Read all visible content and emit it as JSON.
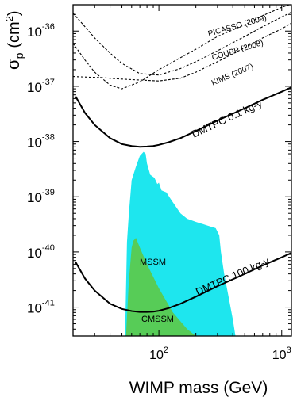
{
  "chart_data": {
    "type": "line",
    "title": "",
    "xlabel": "WIMP mass (GeV)",
    "ylabel_main": "σ",
    "ylabel_sub": "p",
    "ylabel_unit": "(cm",
    "ylabel_unit_sup": "2",
    "ylabel_close": ")",
    "xscale": "log",
    "yscale": "log",
    "xlim": [
      20,
      1200
    ],
    "ylim": [
      3e-42,
      3e-36
    ],
    "grid": false,
    "x_ticks": [
      {
        "value": 100,
        "base": "10",
        "exp": "2"
      },
      {
        "value": 1000,
        "base": "10",
        "exp": "3"
      }
    ],
    "y_ticks": [
      {
        "value": 1e-36,
        "base": "10",
        "exp": "-36"
      },
      {
        "value": 1e-37,
        "base": "10",
        "exp": "-37"
      },
      {
        "value": 1e-38,
        "base": "10",
        "exp": "-38"
      },
      {
        "value": 1e-39,
        "base": "10",
        "exp": "-39"
      },
      {
        "value": 1e-40,
        "base": "10",
        "exp": "-40"
      },
      {
        "value": 1e-41,
        "base": "10",
        "exp": "-41"
      }
    ],
    "regions": [
      {
        "name": "MSSM",
        "color": "#1ee6ee",
        "points": [
          [
            53,
            3e-42
          ],
          [
            55,
            1.5e-40
          ],
          [
            57,
            5e-40
          ],
          [
            60,
            2e-39
          ],
          [
            65,
            3.5e-39
          ],
          [
            70,
            5.5e-39
          ],
          [
            75,
            6.5e-39
          ],
          [
            78,
            6e-39
          ],
          [
            80,
            4e-39
          ],
          [
            85,
            2.5e-39
          ],
          [
            92,
            2.2e-39
          ],
          [
            97,
            1.7e-39
          ],
          [
            100,
            1.8e-39
          ],
          [
            105,
            1.3e-39
          ],
          [
            115,
            1.2e-39
          ],
          [
            125,
            9e-40
          ],
          [
            135,
            7e-40
          ],
          [
            150,
            5e-40
          ],
          [
            170,
            4e-40
          ],
          [
            200,
            3.5e-40
          ],
          [
            250,
            3e-40
          ],
          [
            290,
            2.7e-40
          ],
          [
            310,
            2e-40
          ],
          [
            320,
            1e-40
          ],
          [
            340,
            4e-41
          ],
          [
            370,
            1.5e-41
          ],
          [
            400,
            6e-42
          ],
          [
            420,
            3e-42
          ]
        ]
      },
      {
        "name": "CMSSM",
        "color": "#57cc57",
        "points": [
          [
            54,
            3e-42
          ],
          [
            57,
            3e-41
          ],
          [
            60,
            1.2e-40
          ],
          [
            62,
            1.6e-40
          ],
          [
            65,
            1.8e-40
          ],
          [
            70,
            1.2e-40
          ],
          [
            80,
            6e-41
          ],
          [
            100,
            2.2e-41
          ],
          [
            130,
            8e-42
          ],
          [
            170,
            4e-42
          ],
          [
            200,
            3e-42
          ]
        ]
      }
    ],
    "series": [
      {
        "name": "PICASSO (2009)",
        "style": "dashed",
        "color": "#000000",
        "x": [
          20,
          25,
          30,
          40,
          50,
          70,
          100,
          150,
          200,
          300,
          500,
          700,
          1000,
          1200
        ],
        "y": [
          6e-37,
          3e-37,
          1.8e-37,
          1.05e-37,
          9e-38,
          1.2e-37,
          2e-37,
          3.3e-37,
          4.7e-37,
          8e-37,
          1.3e-36,
          1.9e-36,
          2.7e-36,
          3.1e-36
        ]
      },
      {
        "name": "COUPP (2008)",
        "style": "dashed",
        "color": "#000000",
        "x": [
          20,
          25,
          30,
          40,
          50,
          70,
          100,
          150,
          200,
          300,
          500,
          700,
          1000,
          1200
        ],
        "y": [
          2.1e-36,
          1.2e-36,
          7.5e-37,
          4e-37,
          2.6e-37,
          1.7e-37,
          1.6e-37,
          2.1e-37,
          2.8e-37,
          4.4e-37,
          8e-37,
          1.2e-36,
          1.8e-36,
          2.2e-36
        ]
      },
      {
        "name": "KIMS (2007)",
        "style": "dashed",
        "color": "#000000",
        "x": [
          20,
          30,
          40,
          50,
          70,
          100,
          150,
          200,
          300,
          500,
          700,
          1000,
          1200
        ],
        "y": [
          1.5e-37,
          1.45e-37,
          1.4e-37,
          1.35e-37,
          1.3e-37,
          1.25e-37,
          1.4e-37,
          1.8e-37,
          2.8e-37,
          5e-37,
          7.5e-37,
          1.1e-36,
          1.4e-36
        ]
      },
      {
        "name": "DMTPC 0.1 kg-y",
        "style": "solid",
        "color": "#000000",
        "x": [
          21,
          25,
          30,
          40,
          50,
          60,
          70,
          80,
          90,
          100,
          120,
          150,
          200,
          300,
          500,
          700,
          1000,
          1200
        ],
        "y": [
          6.5e-38,
          3.3e-38,
          2e-38,
          1.15e-38,
          9e-39,
          8.3e-39,
          8e-39,
          8.1e-39,
          8.3e-39,
          8.7e-39,
          9.7e-39,
          1.15e-38,
          1.55e-38,
          2.4e-38,
          4e-38,
          5.7e-38,
          8e-38,
          9.6e-38
        ]
      },
      {
        "name": "DMTPC 100 kg-y",
        "style": "solid",
        "color": "#000000",
        "x": [
          21,
          25,
          30,
          40,
          50,
          60,
          70,
          80,
          90,
          100,
          120,
          150,
          200,
          300,
          500,
          700,
          1000,
          1200
        ],
        "y": [
          6.5e-41,
          3.3e-41,
          2e-41,
          1.15e-41,
          9.3e-42,
          8.5e-42,
          8.2e-42,
          8.2e-42,
          8.3e-42,
          8.6e-42,
          9.6e-42,
          1.15e-41,
          1.55e-41,
          2.4e-41,
          4e-41,
          5.7e-41,
          8e-41,
          9.6e-41
        ]
      }
    ]
  }
}
